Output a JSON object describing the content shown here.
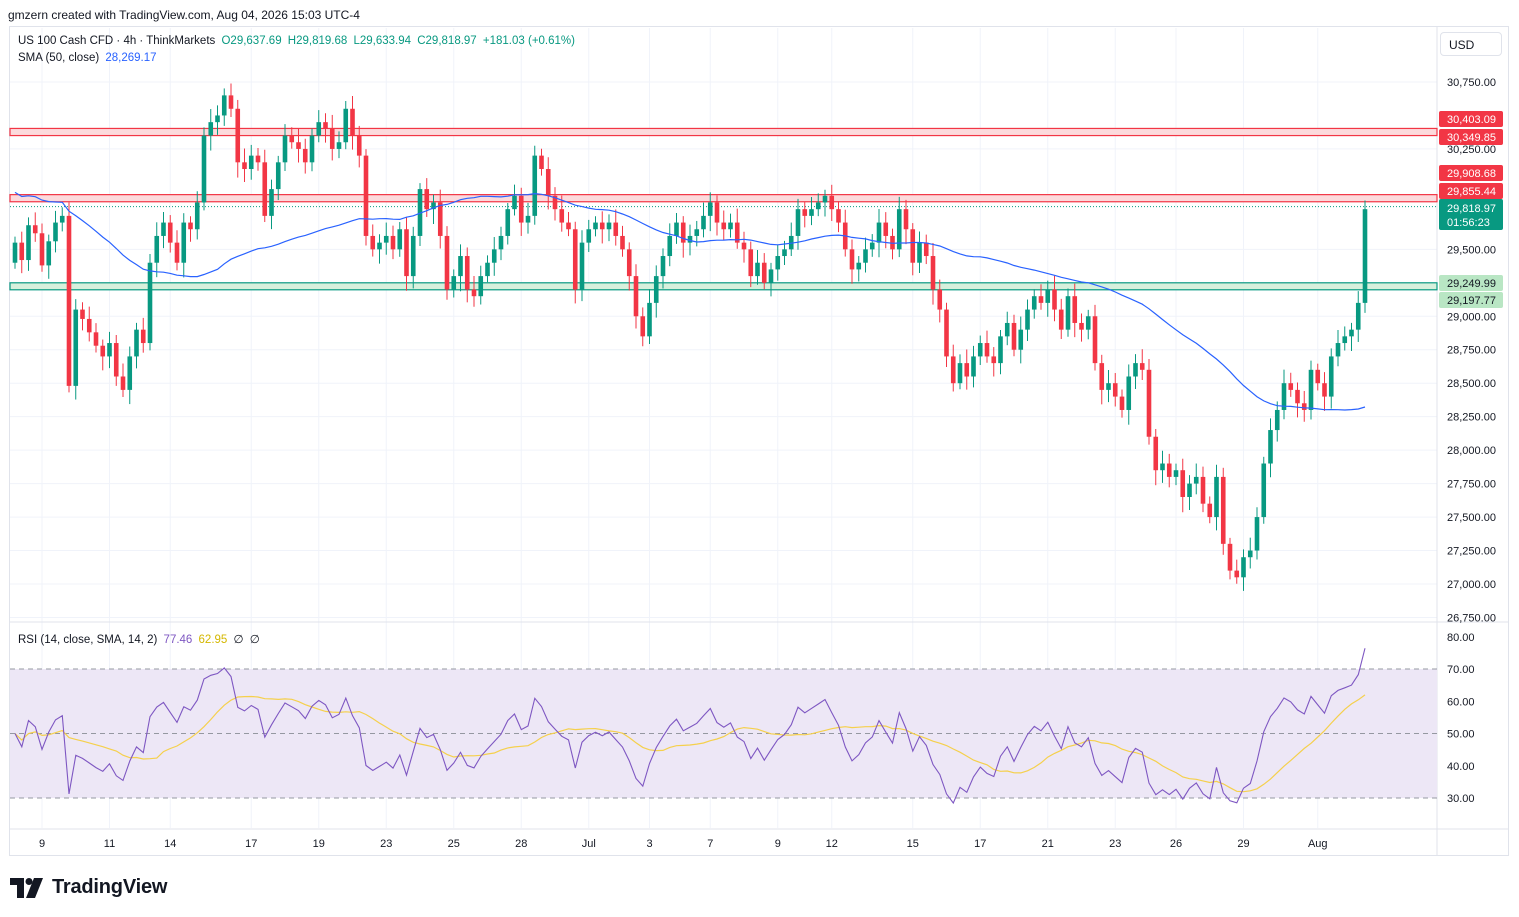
{
  "header": {
    "attribution": "gmzern created with TradingView.com, Aug 04, 2026 15:03 UTC-4"
  },
  "legend": {
    "symbol": "US 100 Cash CFD · 4h · ThinkMarkets",
    "open": "O29,637.69",
    "high": "H29,819.68",
    "low": "L29,633.94",
    "close": "C29,818.97",
    "change": "+181.03 (+0.61%)",
    "sma_label": "SMA (50, close)",
    "sma_value": "28,269.17",
    "rsi_label": "RSI (14, close, SMA, 14, 2)",
    "rsi_value": "77.46",
    "rsi_ma_value": "62.95",
    "rsi_extra1": "∅",
    "rsi_extra2": "∅"
  },
  "currency_button": "USD",
  "footer": {
    "logo_text": "TradingView"
  },
  "colors": {
    "up": "#089981",
    "down": "#f23645",
    "sma": "#2962ff",
    "rsi": "#7e57c2",
    "rsi_ma": "#f5d04c",
    "rsi_band": "#ede7f6",
    "resistance_zone": "#fcdadc",
    "support_zone": "#d7f0dc"
  },
  "chart_data": [
    {
      "type": "candlestick",
      "timeframe": "4h",
      "ylim": [
        26750,
        30750
      ],
      "y_ticks": [
        "30,750.00",
        "30,250.00",
        "29,500.00",
        "29,250.00",
        "29,000.00",
        "28,750.00",
        "28,500.00",
        "28,250.00",
        "28,000.00",
        "27,750.00",
        "27,500.00",
        "27,250.00",
        "27,000.00",
        "26,750.00"
      ],
      "y_tick_values": [
        30750,
        30250,
        29500,
        29250,
        29000,
        28750,
        28500,
        28250,
        28000,
        27750,
        27500,
        27250,
        27000,
        26750
      ],
      "x_labels": [
        "9",
        "11",
        "14",
        "17",
        "19",
        "23",
        "25",
        "28",
        "Jul",
        "3",
        "7",
        "9",
        "12",
        "15",
        "17",
        "21",
        "23",
        "26",
        "29",
        "Aug"
      ],
      "x_label_bars": [
        4,
        14,
        23,
        35,
        45,
        55,
        65,
        75,
        85,
        94,
        103,
        113,
        121,
        133,
        143,
        153,
        163,
        172,
        182,
        193
      ],
      "candle_closes": [
        29550,
        29420,
        29680,
        29620,
        29380,
        29560,
        29700,
        29750,
        28480,
        29050,
        28980,
        28880,
        28780,
        28700,
        28800,
        28550,
        28450,
        28700,
        28900,
        28800,
        29400,
        29600,
        29700,
        29550,
        29400,
        29700,
        29650,
        29850,
        30350,
        30450,
        30500,
        30650,
        30550,
        30150,
        30100,
        30200,
        30150,
        29750,
        29950,
        30150,
        30350,
        30300,
        30250,
        30150,
        30350,
        30450,
        30400,
        30250,
        30300,
        30550,
        30350,
        30200,
        29600,
        29500,
        29550,
        29600,
        29500,
        29650,
        29300,
        29600,
        29950,
        29800,
        29850,
        29600,
        29200,
        29300,
        29450,
        29200,
        29150,
        29300,
        29400,
        29500,
        29600,
        29800,
        29900,
        29700,
        29750,
        30200,
        30100,
        29900,
        29800,
        29700,
        29650,
        29200,
        29550,
        29650,
        29700,
        29650,
        29700,
        29600,
        29500,
        29300,
        29000,
        28850,
        29100,
        29300,
        29450,
        29600,
        29700,
        29550,
        29600,
        29650,
        29750,
        29850,
        29700,
        29650,
        29700,
        29550,
        29500,
        29300,
        29400,
        29250,
        29350,
        29450,
        29500,
        29600,
        29800,
        29750,
        29800,
        29850,
        29900,
        29800,
        29700,
        29500,
        29350,
        29400,
        29500,
        29550,
        29700,
        29600,
        29500,
        29800,
        29650,
        29400,
        29550,
        29450,
        29200,
        29050,
        28700,
        28500,
        28650,
        28550,
        28700,
        28800,
        28700,
        28650,
        28850,
        28950,
        28750,
        28900,
        29050,
        29150,
        29100,
        29200,
        29050,
        28900,
        29150,
        28950,
        28900,
        29000,
        28650,
        28450,
        28500,
        28400,
        28300,
        28550,
        28650,
        28600,
        28100,
        27850,
        27900,
        27800,
        27850,
        27650,
        27750,
        27800,
        27600,
        27500,
        27800,
        27300,
        27100,
        27050,
        27200,
        27250,
        27500,
        27900,
        28150,
        28300,
        28500,
        28450,
        28350,
        28300,
        28600,
        28500,
        28400,
        28700,
        28800,
        28850,
        28900,
        29100,
        29800
      ],
      "current_price": 29818.97,
      "current_price_label": "29,818.97",
      "countdown": "01:56:23",
      "resistance_zone_1": {
        "high": 30403.09,
        "low": 30349.85,
        "high_label": "30,403.09",
        "low_label": "30,349.85"
      },
      "resistance_zone_2": {
        "high": 29908.68,
        "low": 29855.44,
        "high_label": "29,908.68",
        "low_label": "29,855.44"
      },
      "support_zone": {
        "high": 29249.99,
        "low": 29197.77,
        "high_label": "29,249.99",
        "low_label": "29,197.77"
      },
      "sma_last": 28269.17
    },
    {
      "type": "line",
      "name": "RSI (14, close, SMA, 14, 2)",
      "ylim": [
        25,
        80
      ],
      "y_ticks": [
        "80.00",
        "70.00",
        "60.00",
        "50.00",
        "40.00",
        "30.00"
      ],
      "y_tick_values": [
        80,
        70,
        60,
        50,
        40,
        30
      ],
      "levels": [
        70,
        50,
        30
      ],
      "rsi_last": 77.46,
      "rsi_ma_last": 62.95
    }
  ]
}
